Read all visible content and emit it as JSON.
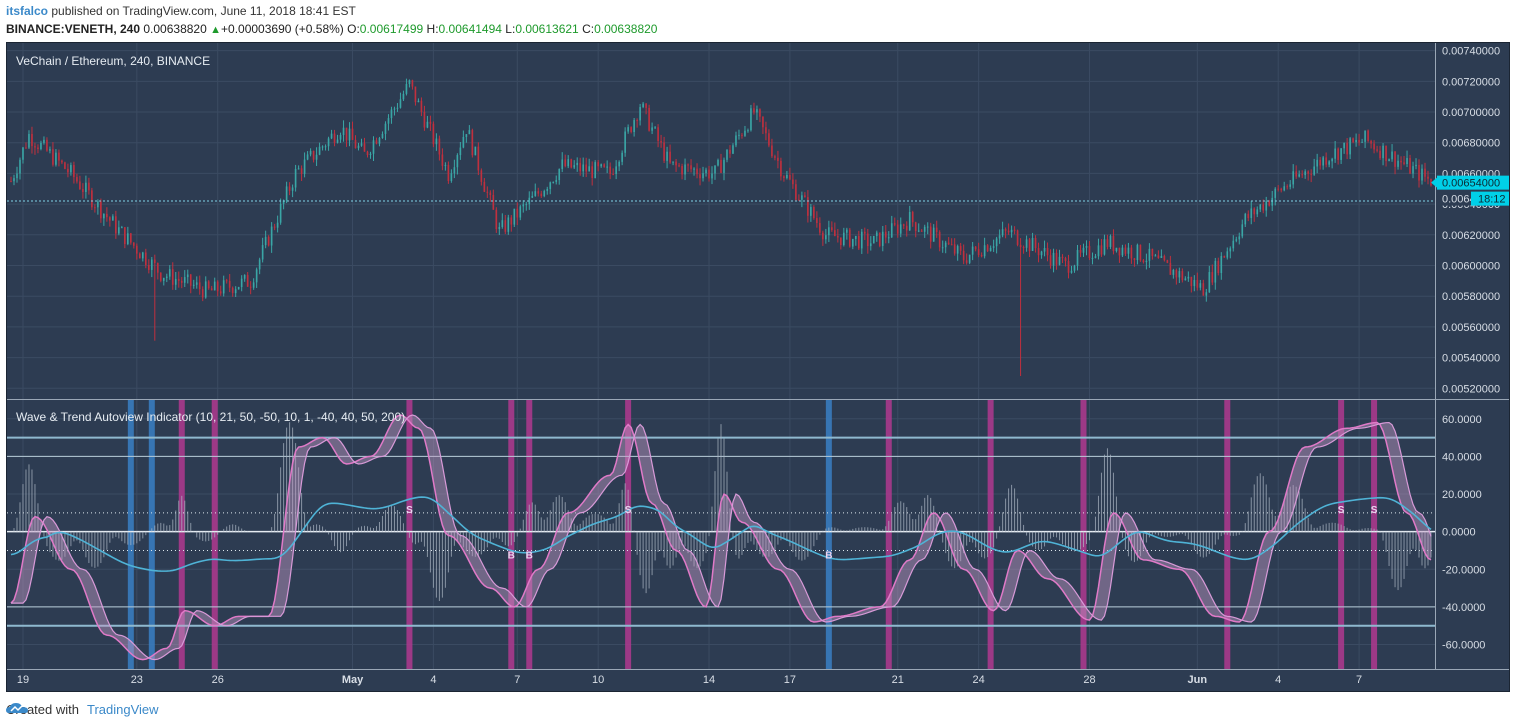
{
  "header": {
    "user": "itsfalco",
    "published_text": "published on TradingView.com, June 11, 2018 18:41 EST",
    "symbol": "BINANCE:VENETH, 240",
    "last": "0.00638820",
    "change_arrow": "▲",
    "change": "+0.00003690 (+0.58%)",
    "o_label": "O:",
    "o": "0.00617499",
    "h_label": "H:",
    "h": "0.00641494",
    "l_label": "L:",
    "l": "0.00613621",
    "c_label": "C:",
    "c": "0.00638820"
  },
  "price_pane": {
    "title": "VeChain / Ethereum, 240, BINANCE",
    "axis_labels": [
      "0.00740000",
      "0.00720000",
      "0.00700000",
      "0.00680000",
      "0.00660000",
      "0.00640000",
      "0.00620000",
      "0.00600000",
      "0.00580000",
      "0.00560000",
      "0.00540000",
      "0.00520000"
    ],
    "axis_min": 0.00513,
    "axis_max": 0.00745,
    "price_tag": "0.00654000",
    "dotted_line_label": "0.0064",
    "countdown_tag": "18:12",
    "dotted_line_value": 0.00642
  },
  "indicator_pane": {
    "title": "Wave & Trend Autoview Indicator (10, 21, 50, -50, 10, 1, -40, 40, 50, 200)",
    "axis_labels": [
      "60.0000",
      "40.0000",
      "20.0000",
      "0.0000",
      "-20.0000",
      "-40.0000",
      "-60.0000"
    ],
    "axis_min": -73,
    "axis_max": 70,
    "signal_markers": [
      {
        "letter": "S",
        "bar": 133
      },
      {
        "letter": "B",
        "bar": 167
      },
      {
        "letter": "B",
        "bar": 173
      },
      {
        "letter": "S",
        "bar": 206
      },
      {
        "letter": "B",
        "bar": 273
      },
      {
        "letter": "S",
        "bar": 444
      },
      {
        "letter": "S",
        "bar": 455
      }
    ]
  },
  "x_axis": {
    "labels": [
      {
        "text": "19",
        "bar": 4
      },
      {
        "text": "23",
        "bar": 42
      },
      {
        "text": "26",
        "bar": 69
      },
      {
        "text": "May",
        "bar": 114
      },
      {
        "text": "4",
        "bar": 141
      },
      {
        "text": "7",
        "bar": 169
      },
      {
        "text": "10",
        "bar": 196
      },
      {
        "text": "14",
        "bar": 233
      },
      {
        "text": "17",
        "bar": 260
      },
      {
        "text": "21",
        "bar": 296
      },
      {
        "text": "24",
        "bar": 323
      },
      {
        "text": "28",
        "bar": 360
      },
      {
        "text": "Jun",
        "bar": 396
      },
      {
        "text": "4",
        "bar": 423
      },
      {
        "text": "7",
        "bar": 450
      }
    ]
  },
  "footer": {
    "created_with": "Created with",
    "brand": "TradingView"
  },
  "colors": {
    "background": "#2d3c52",
    "candle_up": "#3aa6a6",
    "candle_down": "#c0303e",
    "wave_fill": "#c39ac6",
    "wave_line": "#e07ac8",
    "trend_line": "#4fb3d6",
    "buy_band": "#3a7fc4",
    "sell_band": "#b0388f",
    "level_line": "#8fb9cf",
    "price_tag_bg": "#00d0e8"
  }
}
